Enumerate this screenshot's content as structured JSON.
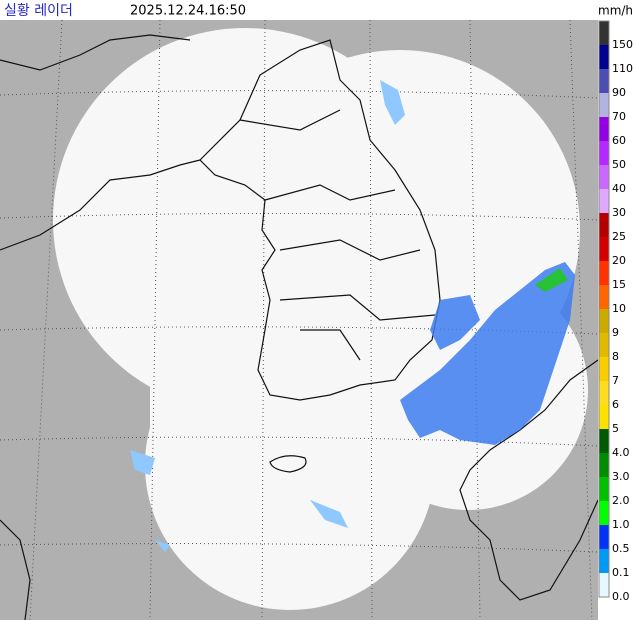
{
  "header": {
    "title": "실황 레이더",
    "time": "2025.12.24.16:50"
  },
  "legend": {
    "unit": "mm/h",
    "levels": [
      {
        "label": "150",
        "color": "#333333"
      },
      {
        "label": "110",
        "color": "#000390"
      },
      {
        "label": "90",
        "color": "#4c4eb1"
      },
      {
        "label": "70",
        "color": "#b3b4de"
      },
      {
        "label": "60",
        "color": "#9300e4"
      },
      {
        "label": "50",
        "color": "#b329ff"
      },
      {
        "label": "40",
        "color": "#c969ff"
      },
      {
        "label": "30",
        "color": "#dfa9ff"
      },
      {
        "label": "25",
        "color": "#b40000"
      },
      {
        "label": "20",
        "color": "#d20000"
      },
      {
        "label": "15",
        "color": "#ff3200"
      },
      {
        "label": "10",
        "color": "#ff6600"
      },
      {
        "label": "9",
        "color": "#ccaa00"
      },
      {
        "label": "8",
        "color": "#e0b900"
      },
      {
        "label": "7",
        "color": "#f9cd00"
      },
      {
        "label": "6",
        "color": "#ffdc1f"
      },
      {
        "label": "5",
        "color": "#ffe100"
      },
      {
        "label": "4.0",
        "color": "#005a00"
      },
      {
        "label": "3.0",
        "color": "#008c00"
      },
      {
        "label": "2.0",
        "color": "#00be00"
      },
      {
        "label": "1.0",
        "color": "#00ff00"
      },
      {
        "label": "0.5",
        "color": "#0033f5"
      },
      {
        "label": "0.1",
        "color": "#0099f5"
      },
      {
        "label": "0.0",
        "color": "#e6f7ff"
      }
    ]
  }
}
